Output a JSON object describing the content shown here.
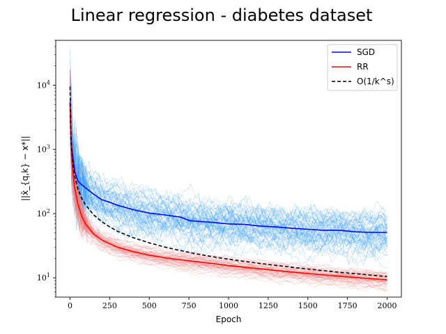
{
  "chart_data": {
    "type": "line",
    "title": "Linear regression - diabetes dataset",
    "xlabel": "Epoch",
    "ylabel": "||x̄_{q,k} − x*||",
    "yscale": "log",
    "xlim": [
      -90,
      2090
    ],
    "ylim": [
      5,
      50000
    ],
    "xticks": [
      0,
      250,
      500,
      750,
      1000,
      1250,
      1500,
      1750,
      2000
    ],
    "yticks": [
      10,
      100,
      1000,
      10000
    ],
    "ytick_labels": [
      "10^1",
      "10^2",
      "10^3",
      "10^4"
    ],
    "grid": false,
    "legend_position": "top-right",
    "series": [
      {
        "name": "SGD",
        "color": "#0000ff",
        "style": "solid",
        "x": [
          0,
          5,
          10,
          20,
          30,
          50,
          75,
          100,
          150,
          200,
          250,
          300,
          400,
          500,
          600,
          700,
          750,
          800,
          900,
          1000,
          1100,
          1200,
          1300,
          1400,
          1500,
          1600,
          1700,
          1800,
          1900,
          2000
        ],
        "y": [
          5500,
          1800,
          1100,
          700,
          450,
          320,
          280,
          250,
          200,
          165,
          150,
          135,
          115,
          102,
          95,
          88,
          78,
          76,
          73,
          69,
          68,
          64,
          62,
          59,
          57,
          55,
          55,
          52,
          51,
          51
        ]
      },
      {
        "name": "RR",
        "color": "#ff0000",
        "style": "solid",
        "x": [
          0,
          5,
          10,
          20,
          30,
          50,
          75,
          100,
          150,
          200,
          250,
          300,
          400,
          500,
          600,
          700,
          800,
          900,
          1000,
          1100,
          1200,
          1300,
          1400,
          1500,
          1600,
          1700,
          1800,
          1900,
          2000
        ],
        "y": [
          5000,
          1500,
          800,
          400,
          250,
          140,
          90,
          68,
          48,
          39,
          34,
          30,
          25.5,
          22.5,
          20.5,
          19,
          17.8,
          16.7,
          15.5,
          14.6,
          13.8,
          13,
          12.3,
          11.7,
          11.1,
          10.6,
          10.1,
          9.7,
          9.3
        ]
      },
      {
        "name": "O(1/k^s)",
        "color": "#000000",
        "style": "dashed",
        "x": [
          0,
          5,
          10,
          20,
          30,
          50,
          75,
          100,
          150,
          200,
          250,
          300,
          400,
          500,
          600,
          700,
          800,
          900,
          1000,
          1100,
          1200,
          1300,
          1400,
          1500,
          1600,
          1700,
          1800,
          1900,
          2000
        ],
        "y": [
          9500,
          2000,
          1000,
          550,
          380,
          240,
          170,
          135,
          95,
          75,
          62,
          53,
          42,
          35,
          30,
          26.5,
          23.5,
          21.3,
          19.5,
          18,
          16.7,
          15.6,
          14.6,
          13.7,
          12.9,
          12.2,
          11.6,
          11,
          10.5
        ]
      }
    ],
    "background_runs": [
      {
        "color": "#3399ff",
        "count": 60,
        "follows": "SGD"
      },
      {
        "color": "#f08080",
        "count": 60,
        "follows": "RR"
      }
    ]
  }
}
